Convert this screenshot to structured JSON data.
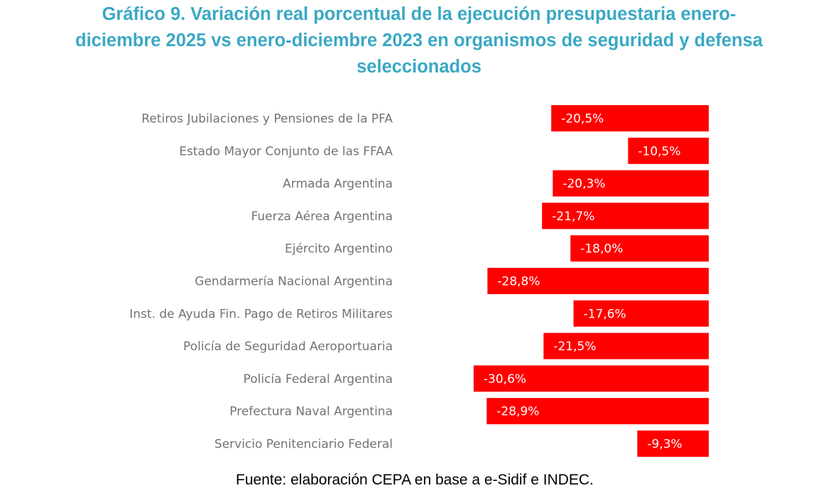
{
  "chart_data": {
    "type": "bar",
    "orientation": "horizontal",
    "title_lines": [
      "Gráfico 9. Variación real porcentual de la ejecución presupuestaria enero-",
      "diciembre 2025 vs enero-diciembre 2023 en organismos de seguridad y defensa",
      "seleccionados"
    ],
    "title": "Gráfico 9. Variación real porcentual de la ejecución presupuestaria enero-diciembre 2025 vs enero-diciembre 2023 en organismos de seguridad y defensa seleccionados",
    "categories": [
      "Retiros Jubilaciones y Pensiones de la PFA",
      "Estado Mayor Conjunto de las FFAA",
      "Armada Argentina",
      "Fuerza Aérea Argentina",
      "Ejército Argentino",
      "Gendarmería Nacional Argentina",
      "Inst. de Ayuda Fin. Pago de Retiros Militares",
      "Policía de Seguridad Aeroportuaria",
      "Policía Federal Argentina",
      "Prefectura Naval Argentina",
      "Servicio Penitenciario Federal"
    ],
    "values": [
      -20.5,
      -10.5,
      -20.3,
      -21.7,
      -18.0,
      -28.8,
      -17.6,
      -21.5,
      -30.6,
      -28.9,
      -9.3
    ],
    "data_labels": [
      "-20,5%",
      "-10,5%",
      "-20,3%",
      "-21,7%",
      "-18,0%",
      "-28,8%",
      "-17,6%",
      "-21,5%",
      "-30,6%",
      "-28,9%",
      "-9,3%"
    ],
    "xlabel": "",
    "ylabel": "",
    "xlim": [
      -31,
      0
    ],
    "grid": false,
    "legend": "none",
    "bar_color": "#ff0000",
    "title_color": "#3aa8c4",
    "label_color": "#737373"
  },
  "source": "Fuente: elaboración CEPA en base a e-Sidif e INDEC."
}
